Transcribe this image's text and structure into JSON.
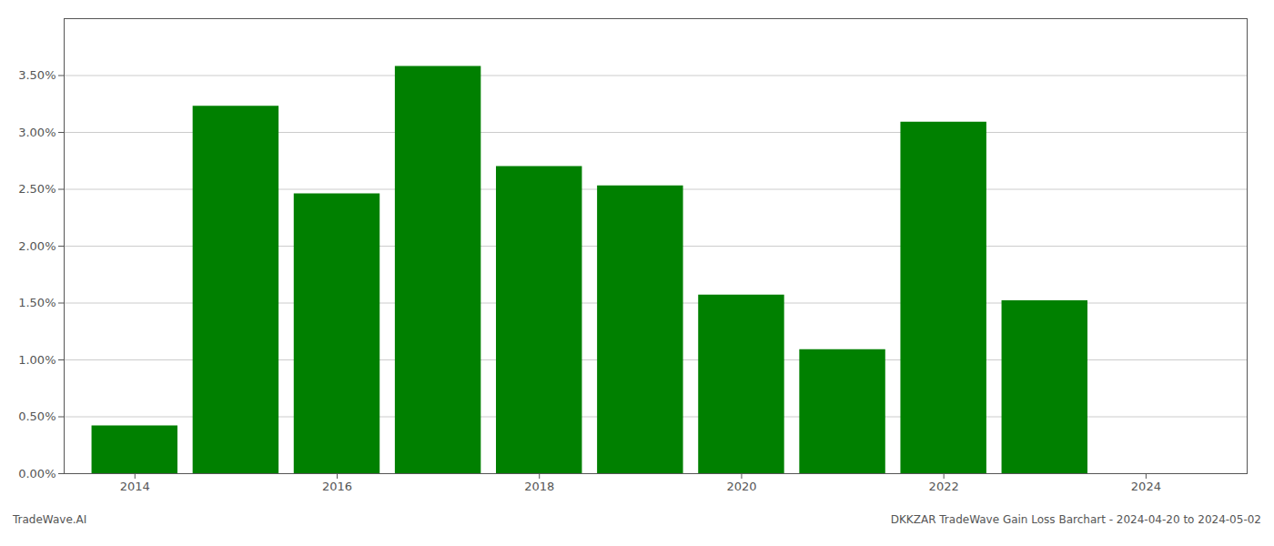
{
  "chart_data": {
    "type": "bar",
    "x": [
      2014,
      2015,
      2016,
      2017,
      2018,
      2019,
      2020,
      2021,
      2022,
      2023
    ],
    "values": [
      0.0042,
      0.0323,
      0.0246,
      0.0358,
      0.027,
      0.0253,
      0.0157,
      0.0109,
      0.0309,
      0.0152
    ],
    "color": "#008000",
    "xlim": [
      2013.3,
      2025.0
    ],
    "xticks": [
      2014,
      2016,
      2018,
      2020,
      2022,
      2024
    ],
    "ylim": [
      0,
      0.04
    ],
    "yticks": [
      {
        "value": 0.0,
        "label": "0.00%"
      },
      {
        "value": 0.005,
        "label": "0.50%"
      },
      {
        "value": 0.01,
        "label": "1.00%"
      },
      {
        "value": 0.015,
        "label": "1.50%"
      },
      {
        "value": 0.02,
        "label": "2.00%"
      },
      {
        "value": 0.025,
        "label": "2.50%"
      },
      {
        "value": 0.03,
        "label": "3.00%"
      },
      {
        "value": 0.035,
        "label": "3.50%"
      }
    ],
    "grid": true,
    "annotations": [
      "TradeWave.AI",
      "DKKZAR TradeWave Gain Loss Barchart - 2024-04-20 to 2024-05-02"
    ]
  }
}
